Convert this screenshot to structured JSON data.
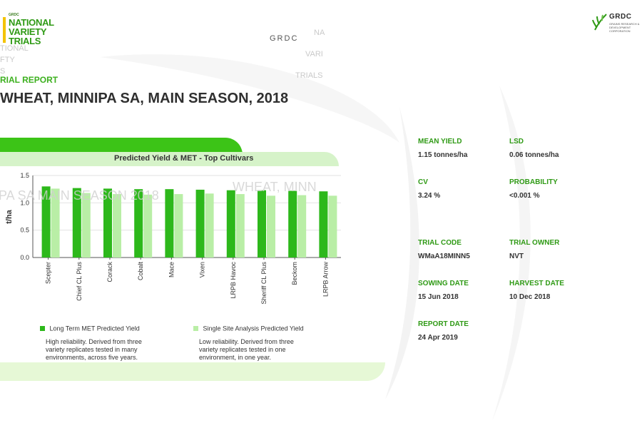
{
  "header": {
    "nvt_logo": {
      "small": "GRDC",
      "line1": "NATIONAL",
      "line2": "VARIETY",
      "line3": "TRIALS"
    },
    "ghost_left": [
      "TIONAL",
      "FTY",
      "S"
    ],
    "ghost_center": [
      "GRDC",
      "NA",
      "VARI",
      "TRIALS"
    ],
    "grdc_logo": {
      "word": "GRDC",
      "sub": "GRAINS RESEARCH & DEVELOPMENT CORPORATION"
    },
    "report_label": "RIAL REPORT",
    "page_title": "WHEAT, MINNIPA SA, MAIN SEASON, 2018"
  },
  "chart": {
    "title": "Predicted Yield & MET - Top Cultivars",
    "ghost_left": "PA SA MAIN SEASON 2018",
    "ghost_right": "WHEAT, MINN"
  },
  "chart_data": {
    "type": "bar",
    "title": "Predicted Yield & MET - Top Cultivars",
    "ylabel": "t/ha",
    "xlabel": "",
    "ylim": [
      0,
      1.5
    ],
    "yticks": [
      "0.0",
      "0.5",
      "1.0",
      "1.5"
    ],
    "categories": [
      "Scepter",
      "Chief CL Plus",
      "Corack",
      "Cobalt",
      "Mace",
      "Vixen",
      "LRPB Havoc",
      "Sheriff CL Plus",
      "Beckom",
      "LRPB Arrow"
    ],
    "series": [
      {
        "name": "Long Term MET Predicted Yield",
        "color": "#2db81b",
        "values": [
          1.3,
          1.27,
          1.26,
          1.25,
          1.25,
          1.24,
          1.23,
          1.23,
          1.22,
          1.21
        ]
      },
      {
        "name": "Single Site Analysis Predicted Yield",
        "color": "#b9eea6",
        "values": [
          1.26,
          1.18,
          1.16,
          1.15,
          1.16,
          1.17,
          1.16,
          1.13,
          1.14,
          1.13
        ]
      }
    ]
  },
  "legend": {
    "met": {
      "name": "Long Term MET Predicted Yield",
      "desc": "High reliability. Derived from three variety replicates tested in many environments, across five years.",
      "color": "#2db81b"
    },
    "single": {
      "name": "Single Site Analysis Predicted Yield",
      "desc": "Low reliability. Derived from three variety replicates tested in one environment, in one year.",
      "color": "#b9eea6"
    }
  },
  "stats": {
    "mean_yield": {
      "label": "MEAN YIELD",
      "value": "1.15 tonnes/ha"
    },
    "lsd": {
      "label": "LSD",
      "value": "0.06 tonnes/ha"
    },
    "cv": {
      "label": "CV",
      "value": "3.24 %"
    },
    "probability": {
      "label": "PROBABILITY",
      "value": "<0.001 %"
    },
    "trial_code": {
      "label": "TRIAL CODE",
      "value": "WMaA18MINN5"
    },
    "trial_owner": {
      "label": "TRIAL OWNER",
      "value": "NVT"
    },
    "sowing_date": {
      "label": "SOWING DATE",
      "value": "15 Jun 2018"
    },
    "harvest_date": {
      "label": "HARVEST DATE",
      "value": "10 Dec 2018"
    },
    "report_date": {
      "label": "REPORT DATE",
      "value": "24 Apr 2019"
    }
  }
}
